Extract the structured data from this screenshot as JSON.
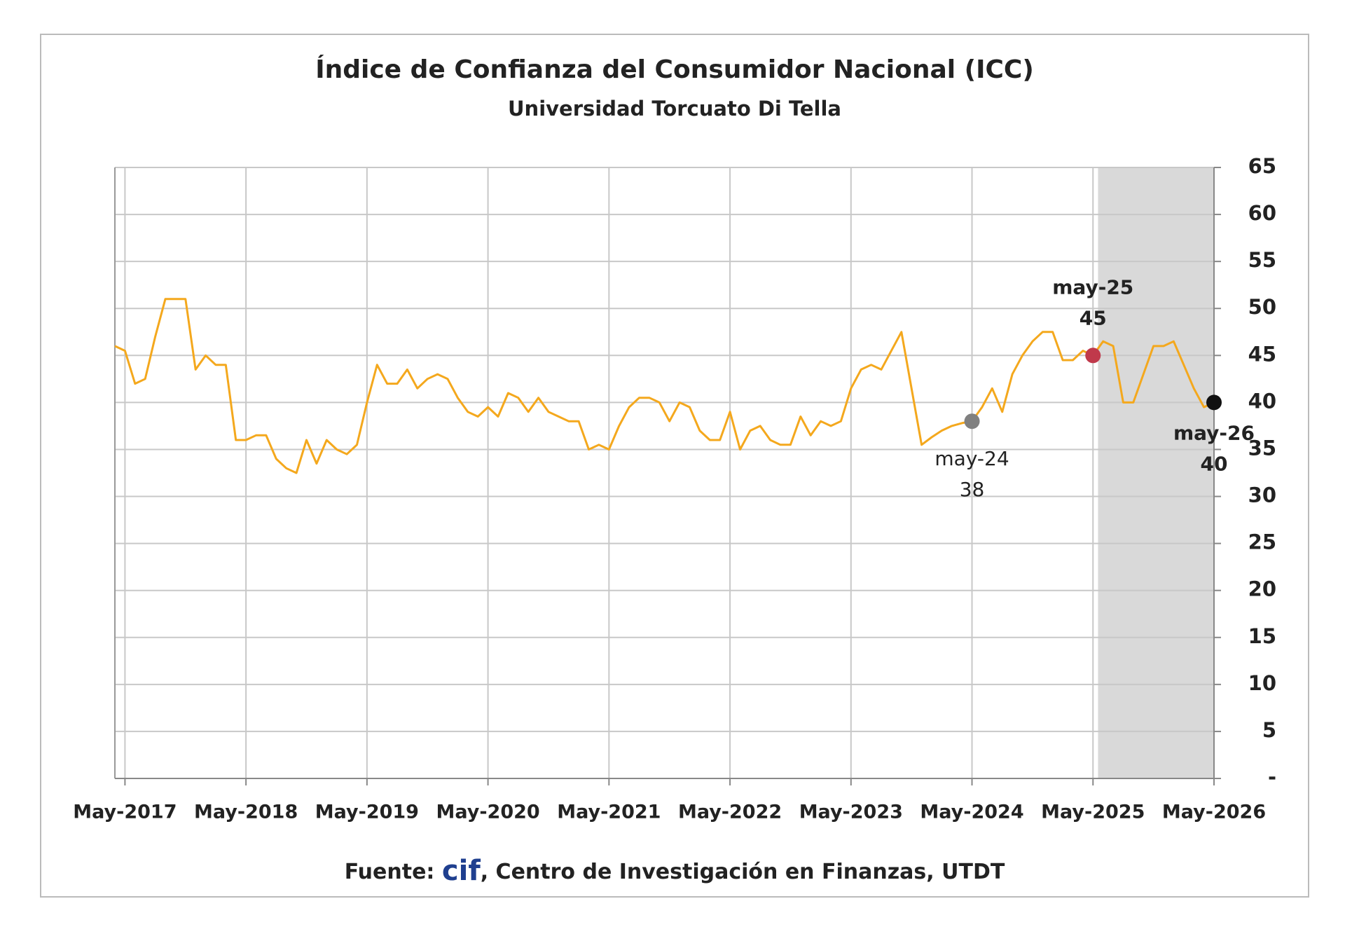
{
  "chart_data": {
    "type": "line",
    "title": "Índice de Confianza del Consumidor Nacional (ICC)",
    "subtitle": "Universidad Torcuato Di Tella",
    "x": [
      "2017-04",
      "2017-05",
      "2017-06",
      "2017-07",
      "2017-08",
      "2017-09",
      "2017-10",
      "2017-11",
      "2017-12",
      "2018-01",
      "2018-02",
      "2018-03",
      "2018-04",
      "2018-05",
      "2018-06",
      "2018-07",
      "2018-08",
      "2018-09",
      "2018-10",
      "2018-11",
      "2018-12",
      "2019-01",
      "2019-02",
      "2019-03",
      "2019-04",
      "2019-05",
      "2019-06",
      "2019-07",
      "2019-08",
      "2019-09",
      "2019-10",
      "2019-11",
      "2019-12",
      "2020-01",
      "2020-02",
      "2020-03",
      "2020-04",
      "2020-05",
      "2020-06",
      "2020-07",
      "2020-08",
      "2020-09",
      "2020-10",
      "2020-11",
      "2020-12",
      "2021-01",
      "2021-02",
      "2021-03",
      "2021-04",
      "2021-05",
      "2021-06",
      "2021-07",
      "2021-08",
      "2021-09",
      "2021-10",
      "2021-11",
      "2021-12",
      "2022-01",
      "2022-02",
      "2022-03",
      "2022-04",
      "2022-05",
      "2022-06",
      "2022-07",
      "2022-08",
      "2022-09",
      "2022-10",
      "2022-11",
      "2022-12",
      "2023-01",
      "2023-02",
      "2023-03",
      "2023-04",
      "2023-05",
      "2023-06",
      "2023-07",
      "2023-08",
      "2023-09",
      "2023-10",
      "2023-11",
      "2023-12",
      "2024-01",
      "2024-02",
      "2024-03",
      "2024-04",
      "2024-05",
      "2024-06",
      "2024-07",
      "2024-08",
      "2024-09",
      "2024-10",
      "2024-11",
      "2024-12",
      "2025-01",
      "2025-02",
      "2025-03",
      "2025-04",
      "2025-05",
      "2025-06",
      "2025-07",
      "2025-08",
      "2025-09",
      "2025-10",
      "2025-11",
      "2025-12",
      "2026-01",
      "2026-02",
      "2026-03",
      "2026-04",
      "2026-05"
    ],
    "values": [
      46,
      45.5,
      42,
      42.5,
      47,
      51,
      51,
      51,
      43.5,
      45,
      44,
      44,
      36,
      36,
      36.5,
      36.5,
      34,
      33,
      32.5,
      36,
      33.5,
      36,
      35,
      34.5,
      35.5,
      40,
      44,
      42,
      42,
      43.5,
      41.5,
      42.5,
      43,
      42.5,
      40.5,
      39,
      38.5,
      39.5,
      38.5,
      41,
      40.5,
      39,
      40.5,
      39,
      38.5,
      38,
      38,
      35,
      35.5,
      35,
      37.5,
      39.5,
      40.5,
      40.5,
      40,
      38,
      40,
      39.5,
      37,
      36,
      36,
      39,
      35,
      37,
      37.5,
      36,
      35.5,
      35.5,
      38.5,
      36.5,
      38,
      37.5,
      38,
      41.5,
      43.5,
      44,
      43.5,
      45.5,
      47.5,
      41.5,
      35.5,
      36.3,
      37,
      37.5,
      37.8,
      38,
      39.5,
      41.5,
      39,
      43,
      45,
      46.5,
      47.5,
      47.5,
      44.5,
      44.5,
      45.5,
      45,
      46.5,
      46,
      40,
      40,
      43,
      46,
      46,
      46.5,
      44,
      41.5,
      39.5,
      40
    ],
    "color": "#f4a81d",
    "xlim": [
      "2017-04",
      "2026-05"
    ],
    "xticks": [
      {
        "value": "2017-05",
        "label": "May-2017"
      },
      {
        "value": "2018-05",
        "label": "May-2018"
      },
      {
        "value": "2019-05",
        "label": "May-2019"
      },
      {
        "value": "2020-05",
        "label": "May-2020"
      },
      {
        "value": "2021-05",
        "label": "May-2021"
      },
      {
        "value": "2022-05",
        "label": "May-2022"
      },
      {
        "value": "2023-05",
        "label": "May-2023"
      },
      {
        "value": "2024-05",
        "label": "May-2024"
      },
      {
        "value": "2025-05",
        "label": "May-2025"
      },
      {
        "value": "2026-05",
        "label": "May-2026"
      }
    ],
    "ylim": [
      0,
      65
    ],
    "yticks": [
      {
        "value": 0,
        "label": "-"
      },
      5,
      10,
      15,
      20,
      25,
      30,
      35,
      40,
      45,
      50,
      55,
      60,
      65
    ],
    "grid": true,
    "shaded_range": [
      "2025-06",
      "2026-05"
    ],
    "annotations": [
      {
        "x": "2024-05",
        "label": "may-24",
        "value": 38,
        "color": "#808080"
      },
      {
        "x": "2025-05",
        "label": "may-25",
        "value": 45,
        "color": "#c0394b"
      },
      {
        "x": "2026-05",
        "label": "may-26",
        "value": 40,
        "color": "#111111"
      }
    ],
    "source_label": "Fuente:",
    "source_logo": "cif",
    "source_text": ", Centro de Investigación en Finanzas, UTDT"
  }
}
